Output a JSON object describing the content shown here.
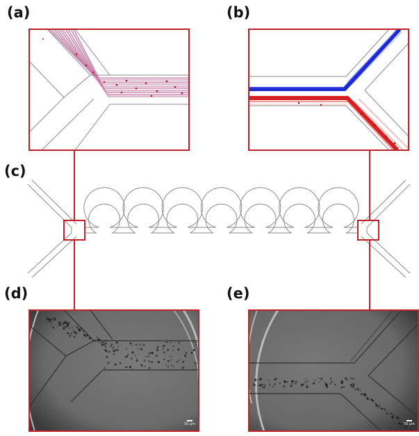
{
  "labels": {
    "a": "(a)",
    "b": "(b)",
    "c": "(c)",
    "d": "(d)",
    "e": "(e)"
  },
  "scale_bars": {
    "d": "50 μm",
    "e": "50 μm"
  },
  "colors": {
    "frame": "#c0202a",
    "channel_line": "#8a8a8a",
    "sim_purple": "#a0407a",
    "sim_blue": "#1a2ad0",
    "sim_red": "#d42020",
    "micro_bg": "#6c6c6c"
  },
  "channel_loops": 7
}
